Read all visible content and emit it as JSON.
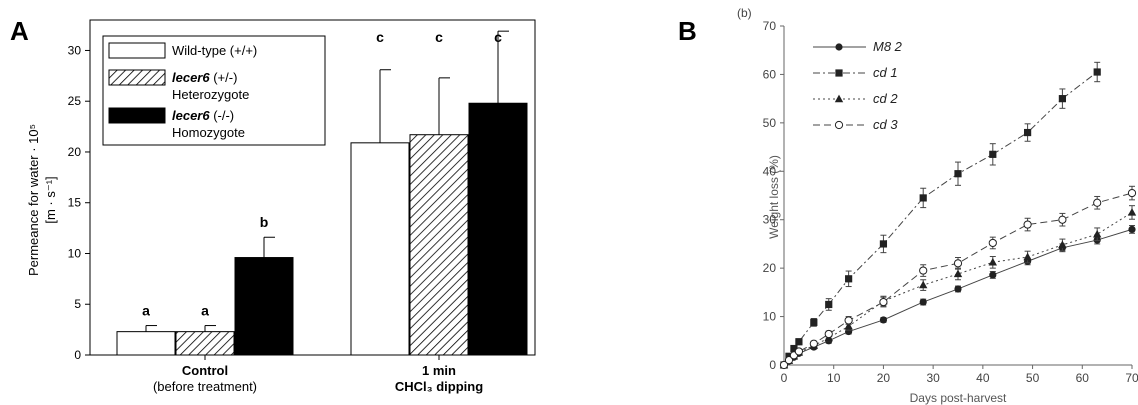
{
  "chart_data": [
    {
      "panel_label": "A",
      "type": "bar",
      "ylabel": "Permeance for water · 10⁵ [m · s⁻¹]",
      "ylabel_line1": "Permeance for water · 10⁵",
      "ylabel_line2": "[m · s⁻¹]",
      "ylim": [
        0,
        33
      ],
      "yticks": [
        0,
        5,
        10,
        15,
        20,
        25,
        30
      ],
      "categories": [
        {
          "line1": "Control",
          "line2": "(before treatment)"
        },
        {
          "line1": "1 min",
          "line2": "CHCl₃ dipping"
        }
      ],
      "series": [
        {
          "name": "Wild-type (+/+)",
          "name_bold": "",
          "name_rest": "Wild-type (+/+)",
          "name_line2": "",
          "fill": "#ffffff",
          "values": [
            2.3,
            20.9
          ],
          "errors": [
            0.6,
            7.2
          ],
          "letters": [
            "a",
            "c"
          ]
        },
        {
          "name": "lecer6 (+/-) Heterozygote",
          "name_bold": "lecer6",
          "name_rest": "  (+/-)",
          "name_line2": "Heterozygote",
          "fill": "hatch",
          "values": [
            2.3,
            21.7
          ],
          "errors": [
            0.6,
            5.6
          ],
          "letters": [
            "a",
            "c"
          ]
        },
        {
          "name": "lecer6 (-/-) Homozygote",
          "name_bold": "lecer6",
          "name_rest": "  (-/-)",
          "name_line2": "Homozygote",
          "fill": "#000000",
          "values": [
            9.6,
            24.8
          ],
          "errors": [
            2.0,
            7.1
          ],
          "letters": [
            "b",
            "c"
          ]
        }
      ]
    },
    {
      "panel_label": "B",
      "sublabel": "(b)",
      "type": "line",
      "xlabel": "Days post-harvest",
      "ylabel": "Weight loss (%)",
      "xlim": [
        0,
        70
      ],
      "ylim": [
        0,
        70
      ],
      "xticks": [
        0,
        10,
        20,
        30,
        40,
        50,
        60,
        70
      ],
      "yticks": [
        0,
        10,
        20,
        30,
        40,
        50,
        60,
        70
      ],
      "x": [
        0,
        1,
        2,
        3,
        6,
        9,
        13,
        20,
        28,
        35,
        42,
        49,
        56,
        63,
        70
      ],
      "series": [
        {
          "name": "M8 2",
          "marker": "circle",
          "dash": "",
          "values": [
            0,
            0.8,
            1.6,
            2.4,
            3.7,
            5.0,
            6.9,
            9.3,
            13.0,
            15.7,
            18.6,
            21.4,
            24.2,
            25.8,
            28.0
          ],
          "errors": [
            0,
            0.3,
            0.3,
            0.3,
            0.4,
            0.5,
            0.5,
            0.5,
            0.6,
            0.6,
            0.7,
            0.7,
            0.8,
            0.8,
            0.8
          ]
        },
        {
          "name": "cd 1",
          "marker": "square",
          "dash": "7,3,2,3",
          "values": [
            0,
            1.8,
            3.4,
            4.8,
            8.8,
            12.5,
            17.8,
            25.0,
            34.5,
            39.5,
            43.5,
            48.0,
            55.0,
            60.5,
            null
          ],
          "errors": [
            0,
            0.4,
            0.5,
            0.6,
            0.8,
            1.2,
            1.6,
            1.8,
            2.0,
            2.4,
            2.2,
            1.8,
            2.0,
            2.0,
            0
          ]
        },
        {
          "name": "cd 2",
          "marker": "triangle",
          "dash": "2,3",
          "values": [
            0,
            0.9,
            1.8,
            2.6,
            4.0,
            5.6,
            8.0,
            13.2,
            16.5,
            18.8,
            21.2,
            22.3,
            24.8,
            27.0,
            31.5
          ],
          "errors": [
            0,
            0.3,
            0.3,
            0.4,
            0.5,
            0.6,
            0.8,
            1.0,
            1.1,
            1.2,
            1.2,
            1.2,
            1.2,
            1.3,
            1.4
          ]
        },
        {
          "name": "cd 3",
          "marker": "open-circle",
          "dash": "7,4",
          "values": [
            0,
            1.0,
            2.0,
            2.8,
            4.4,
            6.4,
            9.2,
            13.0,
            19.5,
            21.0,
            25.2,
            29.0,
            30.0,
            33.5,
            35.5
          ],
          "errors": [
            0,
            0.3,
            0.4,
            0.4,
            0.5,
            0.6,
            0.8,
            1.0,
            1.2,
            1.2,
            1.2,
            1.3,
            1.3,
            1.3,
            1.4
          ]
        }
      ]
    }
  ]
}
